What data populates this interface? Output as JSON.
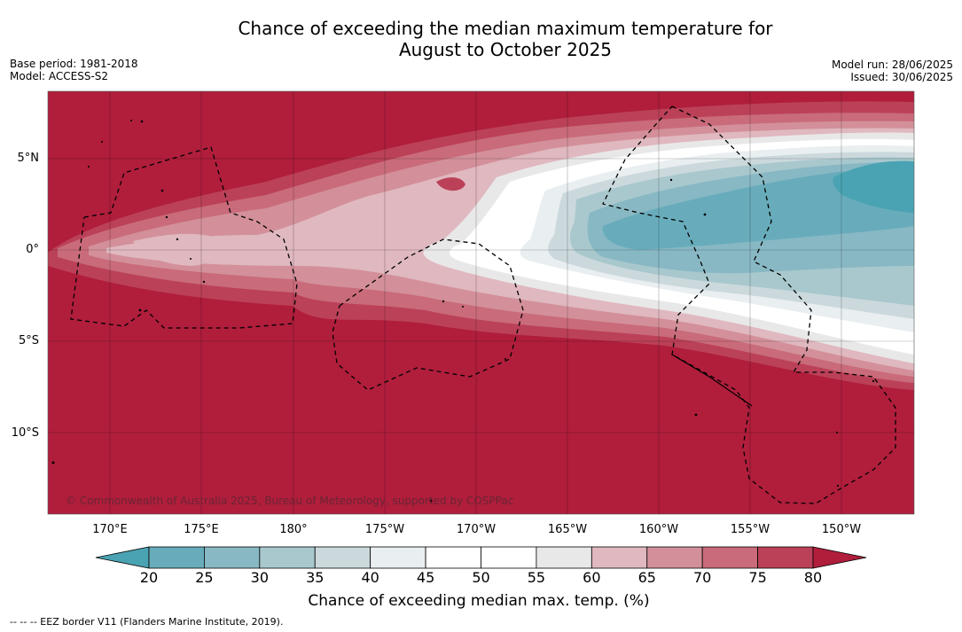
{
  "title_line1": "Chance of exceeding the median maximum temperature for",
  "title_line2": "August to October 2025",
  "meta_left": {
    "base_period": "Base period: 1981-2018",
    "model": "Model: ACCESS-S2"
  },
  "meta_right": {
    "model_run": "Model run: 28/06/2025",
    "issued": "Issued: 30/06/2025"
  },
  "lat_labels": [
    "5°N",
    "0°",
    "5°S",
    "10°S"
  ],
  "lon_labels": [
    "170°E",
    "175°E",
    "180°",
    "175°W",
    "170°W",
    "165°W",
    "160°W",
    "155°W",
    "150°W"
  ],
  "colorbar": {
    "ticks": [
      "20",
      "25",
      "30",
      "35",
      "40",
      "45",
      "50",
      "55",
      "60",
      "65",
      "70",
      "75",
      "80"
    ],
    "colors": [
      "#4aa3b3",
      "#68acbb",
      "#88b8c4",
      "#a8c8cd",
      "#cbd9dd",
      "#e9eef0",
      "#ffffff",
      "#ffffff",
      "#e9e8e9",
      "#e0b8bf",
      "#d3909a",
      "#c96b7a",
      "#bb4158",
      "#b01e3c"
    ],
    "label": "Chance of exceeding median max. temp. (%)"
  },
  "copyright": "© Commonwealth of Australia 2025, Bureau of Meteorology, supported by COSPPac",
  "footnote": "-- -- -- EEZ border V11 (Flanders Marine Institute, 2019)."
}
